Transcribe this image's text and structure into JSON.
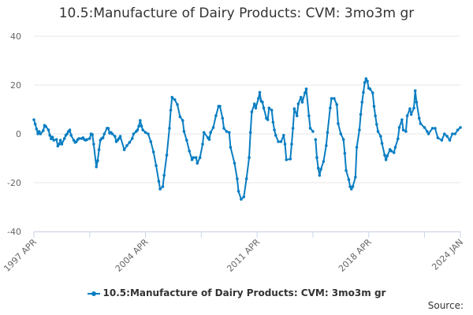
{
  "chart_data": {
    "type": "line",
    "title": "10.5:Manufacture of Dairy Products: CVM: 3mo3m gr",
    "xlabel": "",
    "ylabel": "",
    "ylim": [
      -40,
      40
    ],
    "yticks": [
      "40",
      "20",
      "0",
      "-20",
      "-40"
    ],
    "xlim": [
      "1997-04",
      "2024-01"
    ],
    "xticks": [
      {
        "label": "1997 APR",
        "date": "1997-04"
      },
      {
        "label": "2004 APR",
        "date": "2004-04"
      },
      {
        "label": "2011 APR",
        "date": "2011-04"
      },
      {
        "label": "2018 APR",
        "date": "2018-04"
      },
      {
        "label": "2024 JAN",
        "date": "2024-01"
      }
    ],
    "grid": true,
    "legend_position": "bottom",
    "color": "#0a7ec2",
    "series": [
      {
        "name": "10.5:Manufacture of Dairy Products: CVM: 3mo3m gr",
        "points": [
          [
            "1997-04",
            5.8
          ],
          [
            "1997-05",
            4
          ],
          [
            "1997-06",
            2
          ],
          [
            "1997-07",
            0
          ],
          [
            "1997-08",
            1
          ],
          [
            "1997-09",
            0
          ],
          [
            "1997-11",
            1.3
          ],
          [
            "1997-12",
            3.5
          ],
          [
            "1998-01",
            3
          ],
          [
            "1998-03",
            1.6
          ],
          [
            "1998-04",
            -0.6
          ],
          [
            "1998-05",
            -2
          ],
          [
            "1998-06",
            -1.3
          ],
          [
            "1998-07",
            -2.6
          ],
          [
            "1998-09",
            -2.3
          ],
          [
            "1998-10",
            -5
          ],
          [
            "1998-11",
            -4.2
          ],
          [
            "1998-12",
            -2.6
          ],
          [
            "1999-01",
            -4.2
          ],
          [
            "1999-03",
            -1.9
          ],
          [
            "1999-04",
            -0.6
          ],
          [
            "1999-05",
            0
          ],
          [
            "1999-06",
            1
          ],
          [
            "1999-07",
            1.6
          ],
          [
            "1999-08",
            -0.6
          ],
          [
            "1999-10",
            -2.6
          ],
          [
            "1999-11",
            -3.5
          ],
          [
            "1999-12",
            -3.2
          ],
          [
            "2000-01",
            -2.3
          ],
          [
            "2000-02",
            -1.9
          ],
          [
            "2000-04",
            -1.9
          ],
          [
            "2000-05",
            -1.6
          ],
          [
            "2000-06",
            -2.3
          ],
          [
            "2000-07",
            -2.6
          ],
          [
            "2000-08",
            -2.3
          ],
          [
            "2000-10",
            -1.9
          ],
          [
            "2000-11",
            0
          ],
          [
            "2000-12",
            -0.3
          ],
          [
            "2001-01",
            -4.2
          ],
          [
            "2001-03",
            -13.5
          ],
          [
            "2001-04",
            -11
          ],
          [
            "2001-05",
            -6.5
          ],
          [
            "2001-06",
            -2.6
          ],
          [
            "2001-07",
            -1.9
          ],
          [
            "2001-08",
            -1.6
          ],
          [
            "2001-09",
            0
          ],
          [
            "2001-11",
            2.3
          ],
          [
            "2001-12",
            2.3
          ],
          [
            "2002-01",
            0.3
          ],
          [
            "2002-02",
            0.6
          ],
          [
            "2002-03",
            0
          ],
          [
            "2002-05",
            -1
          ],
          [
            "2002-06",
            -3.2
          ],
          [
            "2002-07",
            -2.6
          ],
          [
            "2002-08",
            -1.9
          ],
          [
            "2002-09",
            -1
          ],
          [
            "2002-12",
            -6.5
          ],
          [
            "2003-02",
            -4.8
          ],
          [
            "2003-04",
            -3.5
          ],
          [
            "2003-06",
            -1.9
          ],
          [
            "2003-07",
            0
          ],
          [
            "2003-09",
            1
          ],
          [
            "2003-10",
            1.6
          ],
          [
            "2003-11",
            3.2
          ],
          [
            "2003-12",
            5.5
          ],
          [
            "2004-01",
            3.2
          ],
          [
            "2004-02",
            1.6
          ],
          [
            "2004-04",
            0.6
          ],
          [
            "2004-06",
            0
          ],
          [
            "2004-08",
            -3.2
          ],
          [
            "2004-10",
            -7.4
          ],
          [
            "2004-12",
            -13
          ],
          [
            "2005-02",
            -19.4
          ],
          [
            "2005-03",
            -22.6
          ],
          [
            "2005-05",
            -21.6
          ],
          [
            "2005-06",
            -17
          ],
          [
            "2005-08",
            -8.7
          ],
          [
            "2005-10",
            2.3
          ],
          [
            "2005-11",
            9.7
          ],
          [
            "2005-12",
            15
          ],
          [
            "2006-02",
            14
          ],
          [
            "2006-04",
            12
          ],
          [
            "2006-06",
            7
          ],
          [
            "2006-08",
            5.5
          ],
          [
            "2006-09",
            1
          ],
          [
            "2006-11",
            -2.6
          ],
          [
            "2007-01",
            -7
          ],
          [
            "2007-03",
            -10.6
          ],
          [
            "2007-04",
            -9.7
          ],
          [
            "2007-06",
            -9.7
          ],
          [
            "2007-07",
            -12
          ],
          [
            "2007-09",
            -9.7
          ],
          [
            "2007-11",
            -4.2
          ],
          [
            "2007-12",
            0.6
          ],
          [
            "2008-03",
            -1.6
          ],
          [
            "2008-04",
            -2.3
          ],
          [
            "2008-05",
            0.6
          ],
          [
            "2008-07",
            2.6
          ],
          [
            "2008-09",
            7.4
          ],
          [
            "2008-11",
            11.3
          ],
          [
            "2008-12",
            11.3
          ],
          [
            "2009-02",
            6.4
          ],
          [
            "2009-03",
            2.3
          ],
          [
            "2009-05",
            1
          ],
          [
            "2009-07",
            0.6
          ],
          [
            "2009-08",
            -5.5
          ],
          [
            "2009-11",
            -12
          ],
          [
            "2010-01",
            -18.4
          ],
          [
            "2010-02",
            -23.5
          ],
          [
            "2010-04",
            -26.8
          ],
          [
            "2010-06",
            -25.8
          ],
          [
            "2010-08",
            -18.4
          ],
          [
            "2010-10",
            -9.7
          ],
          [
            "2010-11",
            0.6
          ],
          [
            "2010-12",
            9
          ],
          [
            "2011-02",
            12.3
          ],
          [
            "2011-03",
            10.6
          ],
          [
            "2011-05",
            14.5
          ],
          [
            "2011-06",
            17
          ],
          [
            "2011-07",
            13.5
          ],
          [
            "2011-08",
            13
          ],
          [
            "2011-09",
            10.6
          ],
          [
            "2011-11",
            6.4
          ],
          [
            "2011-12",
            5.8
          ],
          [
            "2012-01",
            10.6
          ],
          [
            "2012-03",
            9.7
          ],
          [
            "2012-04",
            4.8
          ],
          [
            "2012-05",
            1.6
          ],
          [
            "2012-06",
            -0.6
          ],
          [
            "2012-08",
            -3.2
          ],
          [
            "2012-10",
            -3.2
          ],
          [
            "2012-12",
            -0.6
          ],
          [
            "2013-01",
            -4.2
          ],
          [
            "2013-02",
            -10.6
          ],
          [
            "2013-05",
            -10.3
          ],
          [
            "2013-06",
            -4.2
          ],
          [
            "2013-07",
            2.3
          ],
          [
            "2013-08",
            10.3
          ],
          [
            "2013-10",
            7.4
          ],
          [
            "2013-11",
            12.3
          ],
          [
            "2014-01",
            15
          ],
          [
            "2014-02",
            13
          ],
          [
            "2014-04",
            16.8
          ],
          [
            "2014-05",
            18.4
          ],
          [
            "2014-07",
            7.4
          ],
          [
            "2014-08",
            2.3
          ],
          [
            "2014-10",
            1
          ],
          [
            "2014-11",
            null
          ],
          [
            "2014-12",
            -2.3
          ],
          [
            "2015-01",
            -9.7
          ],
          [
            "2015-02",
            -14
          ],
          [
            "2015-03",
            -17
          ],
          [
            "2015-04",
            -14.5
          ],
          [
            "2015-06",
            -11.3
          ],
          [
            "2015-08",
            -4.8
          ],
          [
            "2015-09",
            0.6
          ],
          [
            "2015-11",
            10.6
          ],
          [
            "2015-12",
            14.5
          ],
          [
            "2016-02",
            14.5
          ],
          [
            "2016-04",
            12
          ],
          [
            "2016-05",
            4.2
          ],
          [
            "2016-07",
            0
          ],
          [
            "2016-09",
            -2.3
          ],
          [
            "2016-10",
            -8
          ],
          [
            "2016-11",
            -15
          ],
          [
            "2017-01",
            -18.7
          ],
          [
            "2017-02",
            -21.6
          ],
          [
            "2017-03",
            -22.6
          ],
          [
            "2017-04",
            -21.6
          ],
          [
            "2017-06",
            -17.7
          ],
          [
            "2017-07",
            -5.5
          ],
          [
            "2017-09",
            1.6
          ],
          [
            "2017-10",
            8
          ],
          [
            "2017-11",
            13
          ],
          [
            "2017-12",
            17
          ],
          [
            "2018-01",
            21
          ],
          [
            "2018-02",
            22.6
          ],
          [
            "2018-03",
            21.6
          ],
          [
            "2018-04",
            18.7
          ],
          [
            "2018-05",
            18.4
          ],
          [
            "2018-07",
            16.8
          ],
          [
            "2018-08",
            11.3
          ],
          [
            "2018-09",
            7.4
          ],
          [
            "2018-10",
            3.9
          ],
          [
            "2018-11",
            1
          ],
          [
            "2019-01",
            -1
          ],
          [
            "2019-02",
            -3.9
          ],
          [
            "2019-04",
            -8.7
          ],
          [
            "2019-05",
            -10.6
          ],
          [
            "2019-06",
            -9
          ],
          [
            "2019-08",
            -6.4
          ],
          [
            "2019-09",
            -7
          ],
          [
            "2019-11",
            -7.7
          ],
          [
            "2019-12",
            -5.5
          ],
          [
            "2020-02",
            -2
          ],
          [
            "2020-03",
            2.6
          ],
          [
            "2020-05",
            5.8
          ],
          [
            "2020-06",
            1.6
          ],
          [
            "2020-08",
            1
          ],
          [
            "2020-09",
            7.4
          ],
          [
            "2020-11",
            10.3
          ],
          [
            "2020-12",
            8
          ],
          [
            "2021-02",
            10.6
          ],
          [
            "2021-03",
            17.7
          ],
          [
            "2021-04",
            13
          ],
          [
            "2021-06",
            6.4
          ],
          [
            "2021-07",
            4.2
          ],
          [
            "2021-10",
            2.6
          ],
          [
            "2021-12",
            1
          ],
          [
            "2022-01",
            0
          ],
          [
            "2022-04",
            2.3
          ],
          [
            "2022-06",
            2.3
          ],
          [
            "2022-08",
            -1.6
          ],
          [
            "2022-11",
            -2.6
          ],
          [
            "2023-01",
            0
          ],
          [
            "2023-03",
            -1
          ],
          [
            "2023-05",
            -2.6
          ],
          [
            "2023-07",
            0
          ],
          [
            "2023-09",
            0
          ],
          [
            "2023-11",
            1.6
          ],
          [
            "2024-01",
            2.6
          ]
        ]
      }
    ]
  },
  "source_label": "Source:"
}
